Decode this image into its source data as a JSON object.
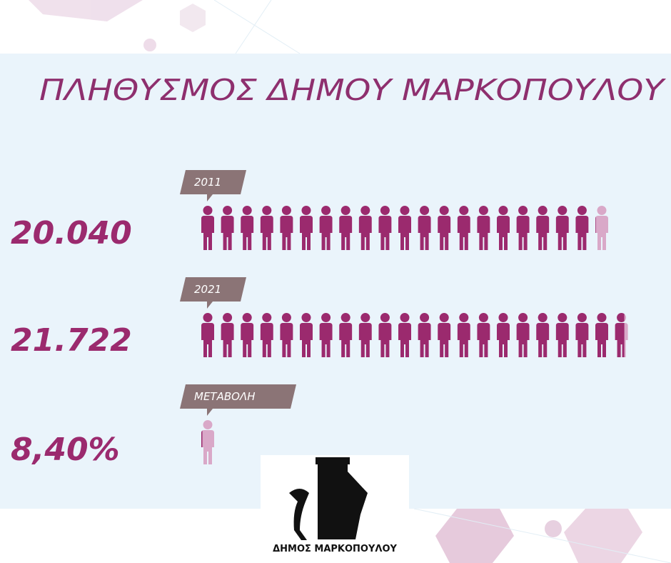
{
  "chart_data": {
    "type": "pictogram",
    "title": "ΠΛΗΘΥΣΜΟΣ ΔΗΜΟΥ ΜΑΡΚΟΠΟΥΛΟΥ",
    "categories": [
      "2011",
      "2021",
      "ΜΕΤΑΒΟΛΗ"
    ],
    "values": [
      20040,
      21722,
      8.4
    ],
    "value_labels": [
      "20.040",
      "21.722",
      "8,40%"
    ],
    "color": "#9b2a6e",
    "empty_color": "#d9a8c8"
  },
  "logo": {
    "text": "ΔΗΜΟΣ ΜΑΡΚΟΠΟΥΛΟΥ"
  }
}
